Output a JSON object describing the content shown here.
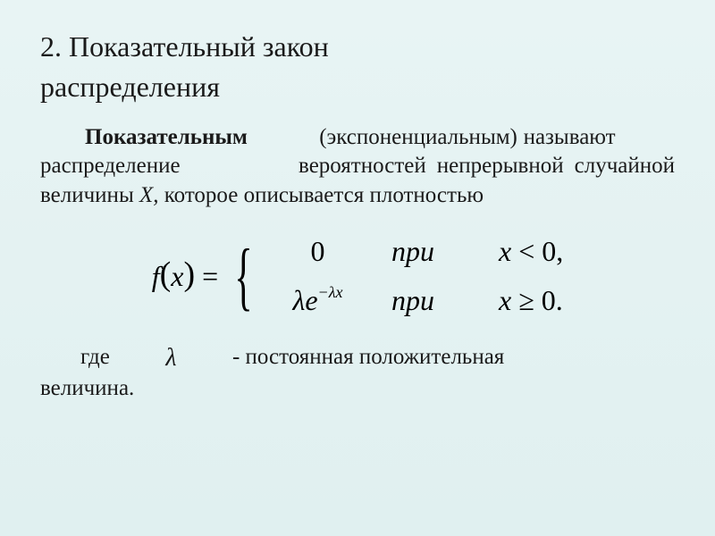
{
  "heading": {
    "number": "2.",
    "title_line1": "Показательный закон",
    "title_line2": "распределения"
  },
  "definition": {
    "bold_term": "Показательным",
    "paren_term": "(экспоненциальным)",
    "text1": "называют",
    "text2": "распределение",
    "text3": "вероятностей",
    "text4": "непрерывной",
    "text5": "случайной",
    "text6": "величины",
    "var": "X,",
    "text7": "которое",
    "text8": "описывается плотностью"
  },
  "formula": {
    "func_name": "f",
    "arg": "x",
    "equals": "=",
    "case1": {
      "value": "0",
      "pri": "при",
      "cond_var": "x",
      "cond_op": "<",
      "cond_val": "0,"
    },
    "case2": {
      "lambda": "λ",
      "e": "e",
      "exp_minus": "−",
      "exp_lambda": "λ",
      "exp_x": "x",
      "pri": "при",
      "cond_var": "x",
      "cond_op": "≥",
      "cond_val": "0."
    }
  },
  "footer": {
    "text1": "где",
    "lambda": "λ",
    "text2": "- постоянная положительная",
    "text3": "величина."
  },
  "styling": {
    "background_gradient_top": "#e8f4f4",
    "background_gradient_bottom": "#e0f0f0",
    "text_color": "#1a1a1a",
    "heading_fontsize": 32,
    "body_fontsize": 25,
    "formula_fontsize": 32,
    "font_family": "Times New Roman"
  }
}
